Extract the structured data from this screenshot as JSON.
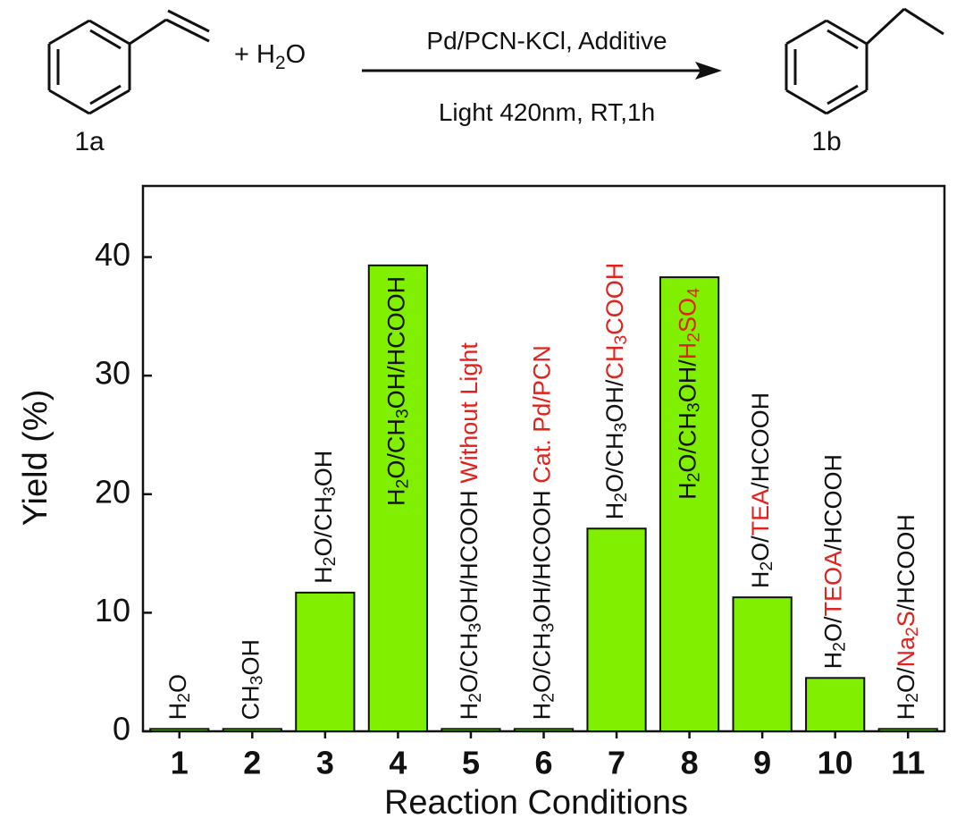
{
  "scheme": {
    "reactant": "1a",
    "product": "1b",
    "plus_water": [
      {
        "text": "+ H"
      },
      {
        "text": "2",
        "sub": true
      },
      {
        "text": "O"
      }
    ],
    "condition_above": "Pd/PCN-KCl, Additive",
    "condition_below": "Light 420nm, RT,1h"
  },
  "chart_data": {
    "type": "bar",
    "x_label": "Reaction Conditions",
    "y_label": "Yield (%)",
    "categories": [
      "1",
      "2",
      "3",
      "4",
      "5",
      "6",
      "7",
      "8",
      "9",
      "10",
      "11"
    ],
    "values": [
      0.2,
      0.2,
      11.7,
      39.3,
      0.2,
      0.2,
      17.1,
      38.3,
      11.3,
      4.5,
      0.2
    ],
    "color": "#80f000",
    "highlight_color": "#e3201b",
    "ylim": [
      0,
      46
    ],
    "yticks": [
      0,
      10,
      20,
      30,
      40
    ],
    "bar_labels": [
      [
        {
          "text": "H"
        },
        {
          "text": "2",
          "sub": true
        },
        {
          "text": "O"
        }
      ],
      [
        {
          "text": "CH"
        },
        {
          "text": "3",
          "sub": true
        },
        {
          "text": "OH"
        }
      ],
      [
        {
          "text": "H"
        },
        {
          "text": "2",
          "sub": true
        },
        {
          "text": "O/CH"
        },
        {
          "text": "3",
          "sub": true
        },
        {
          "text": "OH"
        }
      ],
      [
        {
          "text": "H"
        },
        {
          "text": "2",
          "sub": true
        },
        {
          "text": "O/CH"
        },
        {
          "text": "3",
          "sub": true
        },
        {
          "text": "OH/HCOOH"
        }
      ],
      [
        {
          "text": "H"
        },
        {
          "text": "2",
          "sub": true
        },
        {
          "text": "O/CH"
        },
        {
          "text": "3",
          "sub": true
        },
        {
          "text": "OH/HCOOH"
        },
        {
          "text": " Without Light",
          "highlight": true
        }
      ],
      [
        {
          "text": "H"
        },
        {
          "text": "2",
          "sub": true
        },
        {
          "text": "O/CH"
        },
        {
          "text": "3",
          "sub": true
        },
        {
          "text": "OH/HCOOH"
        },
        {
          "text": " Cat. Pd/PCN",
          "highlight": true
        }
      ],
      [
        {
          "text": "H"
        },
        {
          "text": "2",
          "sub": true
        },
        {
          "text": "O/CH"
        },
        {
          "text": "3",
          "sub": true
        },
        {
          "text": "OH/"
        },
        {
          "text": "CH",
          "highlight": true
        },
        {
          "text": "3",
          "sub": true,
          "highlight": true
        },
        {
          "text": "COOH",
          "highlight": true
        }
      ],
      [
        {
          "text": "H"
        },
        {
          "text": "2",
          "sub": true
        },
        {
          "text": "O/CH"
        },
        {
          "text": "3",
          "sub": true
        },
        {
          "text": "OH/"
        },
        {
          "text": "H",
          "highlight": true
        },
        {
          "text": "2",
          "sub": true,
          "highlight": true
        },
        {
          "text": "SO",
          "highlight": true
        },
        {
          "text": "4",
          "sub": true,
          "highlight": true
        }
      ],
      [
        {
          "text": "H"
        },
        {
          "text": "2",
          "sub": true
        },
        {
          "text": "O/"
        },
        {
          "text": "TEA",
          "highlight": true
        },
        {
          "text": "/HCOOH"
        }
      ],
      [
        {
          "text": "H"
        },
        {
          "text": "2",
          "sub": true
        },
        {
          "text": "O/"
        },
        {
          "text": "TEOA",
          "highlight": true
        },
        {
          "text": "/HCOOH"
        }
      ],
      [
        {
          "text": "H"
        },
        {
          "text": "2",
          "sub": true
        },
        {
          "text": "O/"
        },
        {
          "text": "Na",
          "highlight": true
        },
        {
          "text": "2",
          "sub": true,
          "highlight": true
        },
        {
          "text": "S",
          "highlight": true
        },
        {
          "text": "/HCOOH"
        }
      ]
    ]
  }
}
